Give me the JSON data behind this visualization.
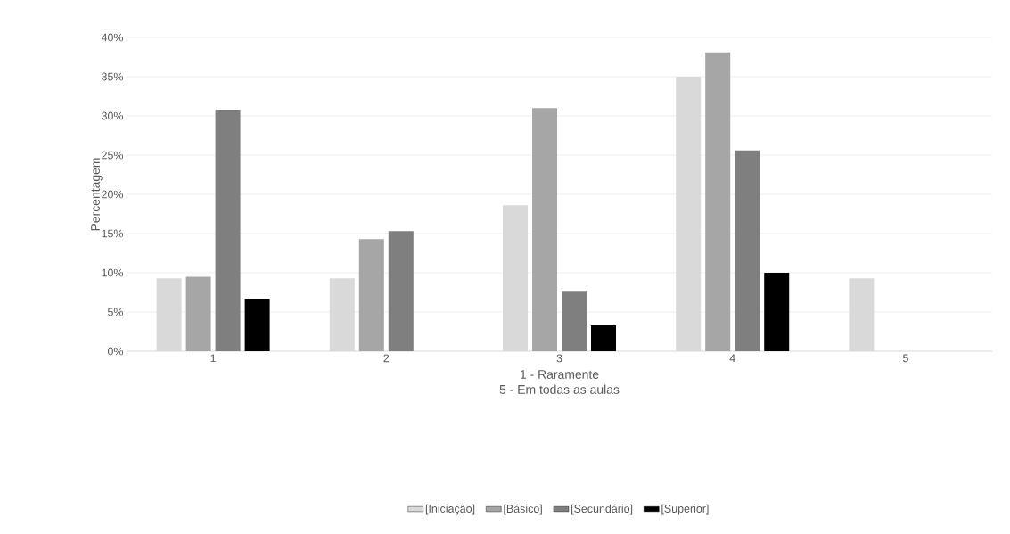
{
  "chart_data": {
    "type": "bar",
    "ylabel": "Percentagem",
    "xlabel": "1 - Raramente",
    "annotations": [
      "5 -  Em todas as aulas"
    ],
    "categories": [
      "1",
      "2",
      "3",
      "4",
      "5"
    ],
    "series": [
      {
        "name": "[Iniciação]",
        "color": "#d9d9d9",
        "values": [
          9.3,
          9.3,
          18.6,
          35.0,
          9.3
        ]
      },
      {
        "name": "[Básico]",
        "color": "#a6a6a6",
        "values": [
          9.5,
          14.3,
          31.0,
          38.1,
          0
        ]
      },
      {
        "name": "[Secundário]",
        "color": "#7f7f7f",
        "values": [
          30.8,
          15.3,
          7.7,
          25.6,
          0
        ]
      },
      {
        "name": "[Superior]",
        "color": "#000000",
        "values": [
          6.7,
          0,
          3.3,
          10.0,
          0
        ]
      }
    ],
    "ylim": [
      0,
      40
    ],
    "yticks": [
      {
        "value": 0,
        "label": "0%"
      },
      {
        "value": 5,
        "label": "5%"
      },
      {
        "value": 10,
        "label": "10%"
      },
      {
        "value": 15,
        "label": "15%"
      },
      {
        "value": 20,
        "label": "20%"
      },
      {
        "value": 25,
        "label": "25%"
      },
      {
        "value": 30,
        "label": "30%"
      },
      {
        "value": 35,
        "label": "35%"
      },
      {
        "value": 40,
        "label": "40%"
      }
    ],
    "grid": "y",
    "legend": "bottom"
  }
}
